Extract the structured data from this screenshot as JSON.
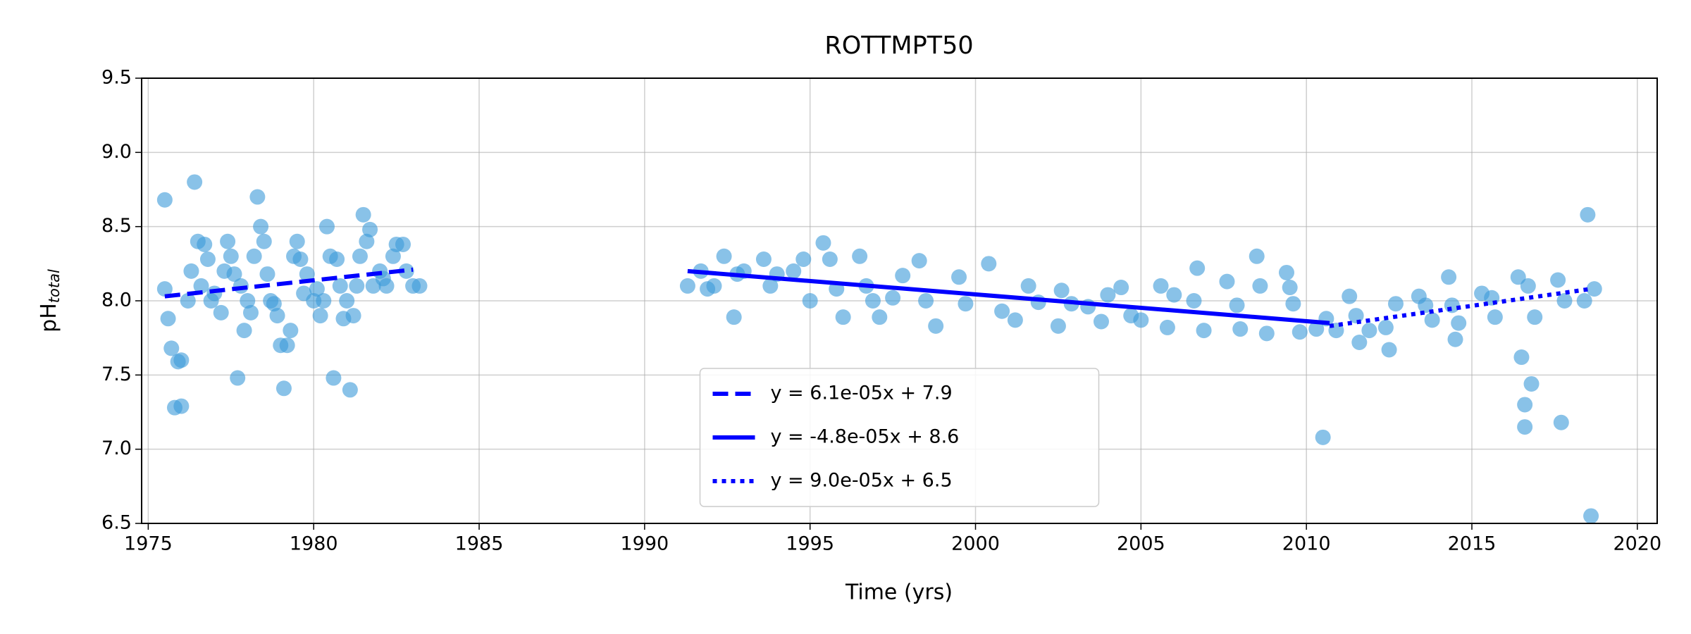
{
  "chart_data": {
    "type": "scatter",
    "title": "ROTTMPT50",
    "xlabel": "Time (yrs)",
    "ylabel": {
      "text": "pH",
      "subscript": "total"
    },
    "xlim": [
      1974.8,
      2020.6
    ],
    "ylim": [
      6.5,
      9.5
    ],
    "xticks": [
      1975,
      1980,
      1985,
      1990,
      1995,
      2000,
      2005,
      2010,
      2015,
      2020
    ],
    "yticks": [
      6.5,
      {
        "value": 7,
        "label": "7.0"
      },
      7.5,
      {
        "value": 8,
        "label": "8.0"
      },
      8.5,
      {
        "value": 9,
        "label": "9.0"
      },
      9.5
    ],
    "grid": true,
    "legend_loc": "lower center",
    "points": {
      "color": "#3a9ad8",
      "x": [
        1975.5,
        1975.5,
        1975.6,
        1975.7,
        1975.8,
        1975.9,
        1976.0,
        1976.0,
        1976.2,
        1976.3,
        1976.4,
        1976.5,
        1976.6,
        1976.7,
        1976.8,
        1976.9,
        1977.0,
        1977.2,
        1977.3,
        1977.4,
        1977.5,
        1977.6,
        1977.7,
        1977.8,
        1977.9,
        1978.0,
        1978.1,
        1978.2,
        1978.3,
        1978.4,
        1978.5,
        1978.6,
        1978.7,
        1978.8,
        1978.9,
        1979.0,
        1979.1,
        1979.2,
        1979.3,
        1979.4,
        1979.5,
        1979.6,
        1979.7,
        1979.8,
        1980.0,
        1980.1,
        1980.2,
        1980.3,
        1980.4,
        1980.5,
        1980.6,
        1980.7,
        1980.8,
        1980.9,
        1981.0,
        1981.1,
        1981.2,
        1981.3,
        1981.4,
        1981.5,
        1981.6,
        1981.7,
        1981.8,
        1982.0,
        1982.1,
        1982.2,
        1982.4,
        1982.5,
        1982.7,
        1982.8,
        1983.0,
        1983.2,
        1991.3,
        1991.7,
        1991.9,
        1992.1,
        1992.4,
        1992.7,
        1992.8,
        1993.0,
        1993.6,
        1993.8,
        1994.0,
        1994.5,
        1994.8,
        1995.0,
        1995.4,
        1995.6,
        1995.8,
        1996.0,
        1996.5,
        1996.7,
        1996.9,
        1997.1,
        1997.5,
        1997.8,
        1998.3,
        1998.5,
        1998.8,
        1999.5,
        1999.7,
        2000.4,
        2000.8,
        2001.2,
        2001.6,
        2001.9,
        2002.5,
        2002.6,
        2002.9,
        2003.4,
        2003.8,
        2004.0,
        2004.4,
        2004.7,
        2005.0,
        2005.6,
        2005.8,
        2006.0,
        2006.6,
        2006.7,
        2006.9,
        2007.6,
        2007.9,
        2008.0,
        2008.5,
        2008.6,
        2008.8,
        2009.4,
        2009.5,
        2009.6,
        2009.8,
        2010.3,
        2010.5,
        2010.6,
        2010.9,
        2011.3,
        2011.5,
        2011.6,
        2011.9,
        2012.4,
        2012.5,
        2012.7,
        2013.4,
        2013.6,
        2013.8,
        2014.3,
        2014.4,
        2014.5,
        2014.6,
        2015.3,
        2015.6,
        2015.7,
        2016.4,
        2016.5,
        2016.6,
        2016.6,
        2016.7,
        2016.8,
        2016.9,
        2017.6,
        2017.7,
        2017.8,
        2018.4,
        2018.5,
        2018.6,
        2018.7
      ],
      "values": [
        8.68,
        8.08,
        7.88,
        7.68,
        7.28,
        7.59,
        7.29,
        7.6,
        8.0,
        8.2,
        8.8,
        8.4,
        8.1,
        8.38,
        8.28,
        8.0,
        8.05,
        7.92,
        8.2,
        8.4,
        8.3,
        8.18,
        7.48,
        8.1,
        7.8,
        8.0,
        7.92,
        8.3,
        8.7,
        8.5,
        8.4,
        8.18,
        8.0,
        7.98,
        7.9,
        7.7,
        7.41,
        7.7,
        7.8,
        8.3,
        8.4,
        8.28,
        8.05,
        8.18,
        8.0,
        8.08,
        7.9,
        8.0,
        8.5,
        8.3,
        7.48,
        8.28,
        8.1,
        7.88,
        8.0,
        7.4,
        7.9,
        8.1,
        8.3,
        8.58,
        8.4,
        8.48,
        8.1,
        8.2,
        8.15,
        8.1,
        8.3,
        8.38,
        8.38,
        8.2,
        8.1,
        8.1,
        8.1,
        8.2,
        8.08,
        8.1,
        8.3,
        7.89,
        8.18,
        8.2,
        8.28,
        8.1,
        8.18,
        8.2,
        8.28,
        8.0,
        8.39,
        8.28,
        8.08,
        7.89,
        8.3,
        8.1,
        8.0,
        7.89,
        8.02,
        8.17,
        8.27,
        8.0,
        7.83,
        8.16,
        7.98,
        8.25,
        7.93,
        7.87,
        8.1,
        7.99,
        7.83,
        8.07,
        7.98,
        7.96,
        7.86,
        8.04,
        8.09,
        7.9,
        7.87,
        8.1,
        7.82,
        8.04,
        8.0,
        8.22,
        7.8,
        8.13,
        7.97,
        7.81,
        8.3,
        8.1,
        7.78,
        8.19,
        8.09,
        7.98,
        7.79,
        7.81,
        7.08,
        7.88,
        7.8,
        8.03,
        7.9,
        7.72,
        7.8,
        7.82,
        7.67,
        7.98,
        8.03,
        7.97,
        7.87,
        8.16,
        7.97,
        7.74,
        7.85,
        8.05,
        8.02,
        7.89,
        8.16,
        7.62,
        7.3,
        7.15,
        8.1,
        7.44,
        7.89,
        8.14,
        7.18,
        8.0,
        8.0,
        8.58,
        6.55,
        8.08
      ]
    },
    "series": [
      {
        "name": "y = 6.1e-05x + 7.9",
        "color": "#0000ff",
        "style": "dashed",
        "x": [
          1975.5,
          1983.0
        ],
        "values": [
          8.03,
          8.21
        ]
      },
      {
        "name": "y = -4.8e-05x + 8.6",
        "color": "#0000ff",
        "style": "solid",
        "x": [
          1991.3,
          2010.7
        ],
        "values": [
          8.2,
          7.85
        ]
      },
      {
        "name": "y = 9.0e-05x + 6.5",
        "color": "#0000ff",
        "style": "dotted",
        "x": [
          2010.7,
          2018.6
        ],
        "values": [
          7.83,
          8.08
        ]
      }
    ]
  }
}
